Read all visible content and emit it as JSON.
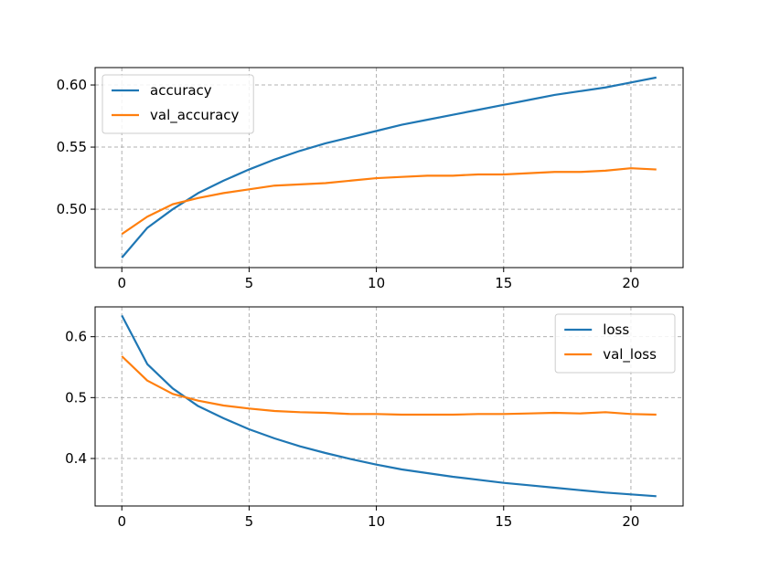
{
  "chart_data": [
    {
      "type": "line",
      "title": "",
      "xlabel": "",
      "ylabel": "",
      "xlim": [
        -1.05,
        22.05
      ],
      "ylim": [
        0.453,
        0.614
      ],
      "xticks": [
        0,
        5,
        10,
        15,
        20
      ],
      "yticks": [
        0.5,
        0.55,
        0.6
      ],
      "ytick_labels": [
        "0.50",
        "0.55",
        "0.60"
      ],
      "grid": true,
      "legend_position": "top-left",
      "x": [
        0,
        1,
        2,
        3,
        4,
        5,
        6,
        7,
        8,
        9,
        10,
        11,
        12,
        13,
        14,
        15,
        16,
        17,
        18,
        19,
        20,
        21
      ],
      "series": [
        {
          "name": "accuracy",
          "color": "#1f77b4",
          "values": [
            0.461,
            0.485,
            0.5,
            0.513,
            0.523,
            0.532,
            0.54,
            0.547,
            0.553,
            0.558,
            0.563,
            0.568,
            0.572,
            0.576,
            0.58,
            0.584,
            0.588,
            0.592,
            0.595,
            0.598,
            0.602,
            0.606
          ]
        },
        {
          "name": "val_accuracy",
          "color": "#ff7f0e",
          "values": [
            0.48,
            0.494,
            0.504,
            0.509,
            0.513,
            0.516,
            0.519,
            0.52,
            0.521,
            0.523,
            0.525,
            0.526,
            0.527,
            0.527,
            0.528,
            0.528,
            0.529,
            0.53,
            0.53,
            0.531,
            0.533,
            0.532
          ]
        }
      ]
    },
    {
      "type": "line",
      "title": "",
      "xlabel": "",
      "ylabel": "",
      "xlim": [
        -1.05,
        22.05
      ],
      "ylim": [
        0.322,
        0.649
      ],
      "xticks": [
        0,
        5,
        10,
        15,
        20
      ],
      "yticks": [
        0.4,
        0.5,
        0.6
      ],
      "ytick_labels": [
        "0.4",
        "0.5",
        "0.6"
      ],
      "grid": true,
      "legend_position": "top-right",
      "x": [
        0,
        1,
        2,
        3,
        4,
        5,
        6,
        7,
        8,
        9,
        10,
        11,
        12,
        13,
        14,
        15,
        16,
        17,
        18,
        19,
        20,
        21
      ],
      "series": [
        {
          "name": "loss",
          "color": "#1f77b4",
          "values": [
            0.635,
            0.555,
            0.515,
            0.486,
            0.466,
            0.448,
            0.433,
            0.42,
            0.409,
            0.399,
            0.39,
            0.382,
            0.376,
            0.37,
            0.365,
            0.36,
            0.356,
            0.352,
            0.348,
            0.344,
            0.341,
            0.338
          ]
        },
        {
          "name": "val_loss",
          "color": "#ff7f0e",
          "values": [
            0.568,
            0.528,
            0.506,
            0.495,
            0.487,
            0.482,
            0.478,
            0.476,
            0.475,
            0.473,
            0.473,
            0.472,
            0.472,
            0.472,
            0.473,
            0.473,
            0.474,
            0.475,
            0.474,
            0.476,
            0.473,
            0.472
          ]
        }
      ]
    }
  ]
}
